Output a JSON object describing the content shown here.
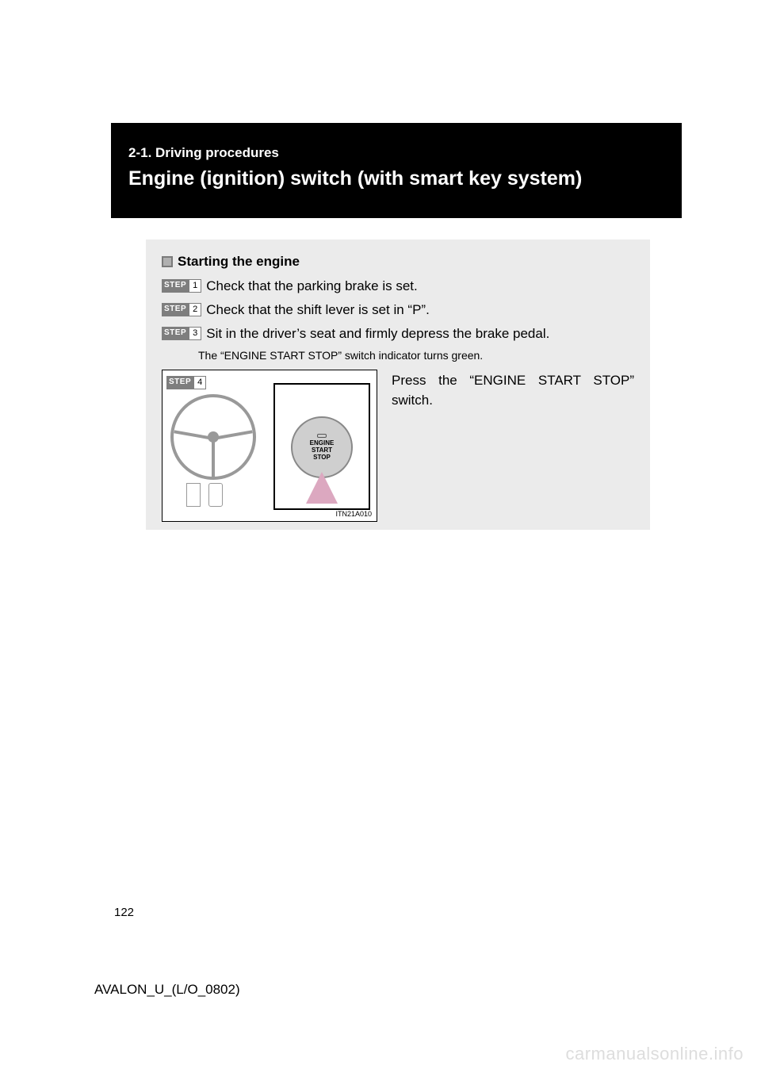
{
  "banner": {
    "subtitle": "2-1. Driving procedures",
    "title": "Engine (ignition) switch (with smart key system)"
  },
  "section": {
    "subheading": "Starting the engine",
    "steps": [
      {
        "tag": "STEP",
        "num": "1",
        "text": "Check that the parking brake is set."
      },
      {
        "tag": "STEP",
        "num": "2",
        "text": "Check that the shift lever is set in “P”."
      },
      {
        "tag": "STEP",
        "num": "3",
        "text": "Sit in the driver’s seat and firmly depress the brake pedal."
      }
    ],
    "step_note": "The “ENGINE START STOP” switch indicator turns green.",
    "illus_step": {
      "tag": "STEP",
      "num": "4"
    },
    "illus_code": "ITN21A010",
    "illus_button_lines": {
      "l1": "ENGINE",
      "l2": "START",
      "l3": "STOP"
    },
    "illus_right_text": "Press the “ENGINE START STOP” switch."
  },
  "footer": {
    "page_number": "122",
    "doc_code": "AVALON_U_(L/O_0802)"
  },
  "watermark": "carmanualsonline.info",
  "colors": {
    "banner_bg": "#000000",
    "banner_fg": "#ffffff",
    "grey_box_bg": "#ebebeb",
    "step_tag_bg": "#7e7e7e",
    "arrow_fill": "#dca8c0",
    "watermark_color": "#dddddd"
  }
}
